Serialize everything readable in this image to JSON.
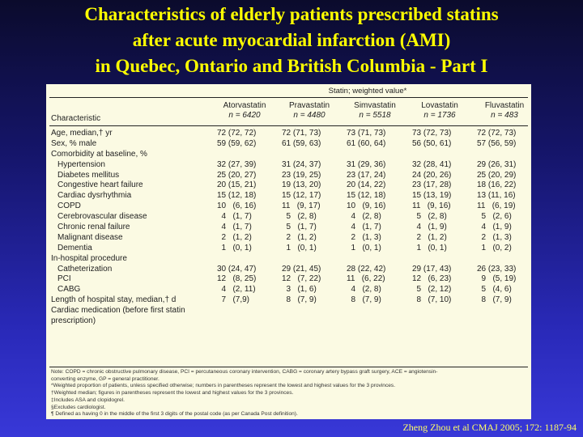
{
  "title": {
    "line1": "Characteristics of elderly patients prescribed statins",
    "line2": "after acute myocardial infarction (AMI)",
    "line3": "in Quebec, Ontario and British Columbia - Part I"
  },
  "table": {
    "spanner": "Statin; weighted value*",
    "characteristic_header": "Characteristic",
    "columns": [
      {
        "name": "Atorvastatin",
        "n": "n = 6420"
      },
      {
        "name": "Pravastatin",
        "n": "n = 4480"
      },
      {
        "name": "Simvastatin",
        "n": "n = 5518"
      },
      {
        "name": "Lovastatin",
        "n": "n = 1736"
      },
      {
        "name": "Fluvastatin",
        "n": "n = 483"
      }
    ],
    "rows": [
      {
        "label": "Age, median,† yr",
        "indent": false,
        "values": [
          "72 (72, 72)",
          "72 (71, 73)",
          "73 (71, 73)",
          "73 (72, 73)",
          "72 (72, 73)"
        ]
      },
      {
        "label": "Sex, % male",
        "indent": false,
        "values": [
          "59 (59, 62)",
          "61 (59, 63)",
          "61 (60, 64)",
          "56 (50, 61)",
          "57 (56, 59)"
        ]
      },
      {
        "label": "Comorbidity at baseline, %",
        "indent": false,
        "values": [
          "",
          "",
          "",
          "",
          ""
        ]
      },
      {
        "label": "Hypertension",
        "indent": true,
        "values": [
          "32 (27, 39)",
          "31 (24, 37)",
          "31 (29, 36)",
          "32 (28, 41)",
          "29 (26, 31)"
        ]
      },
      {
        "label": "Diabetes mellitus",
        "indent": true,
        "values": [
          "25 (20, 27)",
          "23 (19, 25)",
          "23 (17, 24)",
          "24 (20, 26)",
          "25 (20, 29)"
        ]
      },
      {
        "label": "Congestive heart failure",
        "indent": true,
        "values": [
          "20 (15, 21)",
          "19 (13, 20)",
          "20 (14, 22)",
          "23 (17, 28)",
          "18 (16, 22)"
        ]
      },
      {
        "label": "Cardiac dysrhythmia",
        "indent": true,
        "values": [
          "15 (12, 18)",
          "15 (12, 17)",
          "15 (12, 18)",
          "15 (13, 19)",
          "13 (11, 16)"
        ]
      },
      {
        "label": "COPD",
        "indent": true,
        "values": [
          "10   (6, 16)",
          "11   (9, 17)",
          "10   (9, 16)",
          "11   (9, 16)",
          "11   (6, 19)"
        ]
      },
      {
        "label": "Cerebrovascular disease",
        "indent": true,
        "values": [
          "  4   (1, 7)",
          "  5   (2, 8)",
          "  4   (2, 8)",
          "  5   (2, 8)",
          "  5   (2, 6)"
        ]
      },
      {
        "label": "Chronic renal failure",
        "indent": true,
        "values": [
          "  4   (1, 7)",
          "  5   (1, 7)",
          "  4   (1, 7)",
          "  4   (1, 9)",
          "  4   (1, 9)"
        ]
      },
      {
        "label": "Malignant disease",
        "indent": true,
        "values": [
          "  2   (1, 2)",
          "  2   (1, 2)",
          "  2   (1, 3)",
          "  2   (1, 2)",
          "  2   (1, 3)"
        ]
      },
      {
        "label": "Dementia",
        "indent": true,
        "values": [
          "  1   (0, 1)",
          "  1   (0, 1)",
          "  1   (0, 1)",
          "  1   (0, 1)",
          "  1   (0, 2)"
        ]
      },
      {
        "label": "In-hospital procedure",
        "indent": false,
        "values": [
          "",
          "",
          "",
          "",
          ""
        ]
      },
      {
        "label": "Catheterization",
        "indent": true,
        "values": [
          "30 (24, 47)",
          "29 (21, 45)",
          "28 (22, 42)",
          "29 (17, 43)",
          "26 (23, 33)"
        ]
      },
      {
        "label": "PCI",
        "indent": true,
        "values": [
          "12   (8, 25)",
          "12   (7, 22)",
          "11   (6, 22)",
          "12   (6, 23)",
          "  9   (5, 19)"
        ]
      },
      {
        "label": "CABG",
        "indent": true,
        "values": [
          "  4   (2, 11)",
          "  3   (1, 6)",
          "  4   (2, 8)",
          "  5   (2, 12)",
          "  5   (4, 6)"
        ]
      },
      {
        "label": "Length of hospital stay, median,† d",
        "indent": false,
        "values": [
          "  7   (7,9)",
          "  8   (7, 9)",
          "  8   (7, 9)",
          "  8   (7, 10)",
          "  8   (7, 9)"
        ]
      },
      {
        "label": "Cardiac medication (before first statin",
        "indent": false,
        "values": [
          "",
          "",
          "",
          "",
          ""
        ]
      },
      {
        "label": "prescription)",
        "indent": false,
        "values": [
          "",
          "",
          "",
          "",
          ""
        ]
      }
    ],
    "footnotes": [
      "Note: COPD = chronic obstructive pulmonary disease, PCI = percutaneous coronary intervention, CABG = coronary artery bypass graft surgery, ACE = angiotensin-",
      "converting enzyme, GP = general practitioner.",
      "*Weighted proportion of patients, unless specified otherwise; numbers in parentheses represent the lowest and highest values for the 3 provinces.",
      "†Weighted median; figures in parentheses represent the lowest and highest values for the 3 provinces.",
      "‡Includes ASA and clopidogrel.",
      "§Excludes cardiologist.",
      "¶ Defined as having 0 in the middle of the first 3 digits of the postal code (as per Canada Post definition)."
    ]
  },
  "citation": "Zheng Zhou et al CMAJ 2005; 172: 1187-94",
  "colors": {
    "title": "#ffff00",
    "citation": "#ffff66",
    "panel": "#fbfae3"
  }
}
